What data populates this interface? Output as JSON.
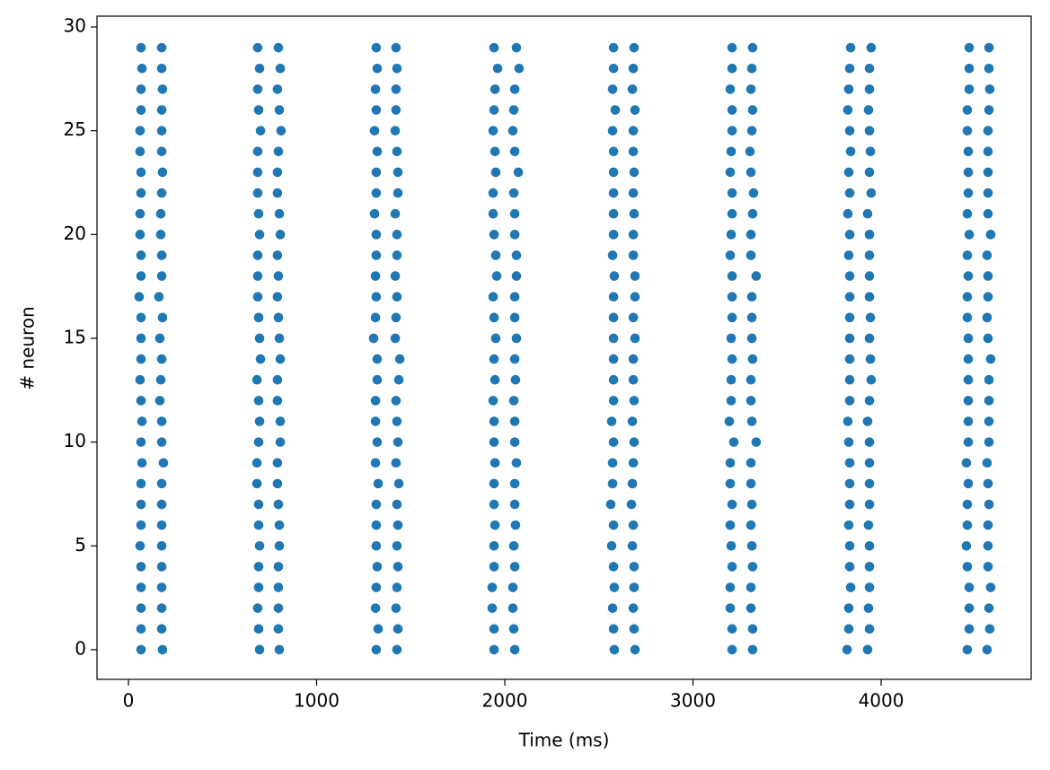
{
  "chart_data": {
    "type": "scatter",
    "xlabel": "Time (ms)",
    "ylabel": "# neuron",
    "color": "#1f77b4",
    "xlim": [
      -167,
      4797
    ],
    "ylim": [
      -1.43,
      30.52
    ],
    "xticks": [
      0,
      1000,
      2000,
      3000,
      4000
    ],
    "yticks": [
      0,
      5,
      10,
      15,
      20,
      25,
      30
    ],
    "x": [
      67,
      177,
      687,
      797,
      1317,
      1422,
      1943,
      2062,
      2578,
      2687,
      3208,
      3317,
      3838,
      3947,
      4468,
      4573,
      72,
      177,
      697,
      807,
      1322,
      1427,
      1962,
      2076,
      2578,
      2683,
      3208,
      3313,
      3833,
      3938,
      4468,
      4573,
      67,
      181,
      687,
      792,
      1313,
      1422,
      1948,
      2053,
      2573,
      2678,
      3198,
      3308,
      3828,
      3938,
      4468,
      4577,
      67,
      177,
      692,
      802,
      1317,
      1422,
      1943,
      2048,
      2587,
      2692,
      3208,
      3317,
      3823,
      3933,
      4458,
      4573,
      62,
      177,
      702,
      811,
      1308,
      1418,
      1938,
      2043,
      2573,
      2683,
      3208,
      3313,
      3833,
      3938,
      4458,
      4568,
      62,
      177,
      687,
      797,
      1322,
      1427,
      1948,
      2053,
      2578,
      2683,
      3203,
      3303,
      3838,
      3943,
      4463,
      4568,
      67,
      181,
      687,
      792,
      1317,
      1432,
      1952,
      2072,
      2578,
      2687,
      3198,
      3308,
      3828,
      3938,
      4463,
      4568,
      67,
      177,
      687,
      792,
      1317,
      1432,
      1938,
      2048,
      2578,
      2683,
      3208,
      3322,
      3833,
      3947,
      4463,
      4568,
      62,
      172,
      692,
      802,
      1308,
      1418,
      1938,
      2053,
      2578,
      2687,
      3208,
      3317,
      3823,
      3928,
      4458,
      4568,
      62,
      172,
      697,
      807,
      1317,
      1427,
      1943,
      2053,
      2578,
      2683,
      3203,
      3308,
      3833,
      3938,
      4468,
      4582,
      67,
      177,
      687,
      792,
      1317,
      1427,
      1952,
      2062,
      2573,
      2683,
      3198,
      3308,
      3828,
      3938,
      4458,
      4563,
      67,
      177,
      687,
      797,
      1313,
      1418,
      1957,
      2062,
      2582,
      2692,
      3208,
      3336,
      3833,
      3938,
      4463,
      4568,
      57,
      162,
      687,
      792,
      1317,
      1427,
      1938,
      2053,
      2578,
      2692,
      3208,
      3313,
      3833,
      3938,
      4458,
      4568,
      67,
      181,
      692,
      797,
      1313,
      1422,
      1943,
      2053,
      2578,
      2683,
      3208,
      3313,
      3833,
      3943,
      4458,
      4563,
      67,
      167,
      697,
      802,
      1303,
      1418,
      1952,
      2062,
      2578,
      2692,
      3203,
      3313,
      3833,
      3938,
      4463,
      4568,
      67,
      177,
      702,
      807,
      1322,
      1442,
      1943,
      2053,
      2578,
      2683,
      3208,
      3317,
      3833,
      3943,
      4463,
      4582,
      62,
      172,
      683,
      792,
      1322,
      1437,
      1948,
      2057,
      2578,
      2683,
      3203,
      3308,
      3833,
      3947,
      4463,
      4573,
      67,
      167,
      692,
      792,
      1313,
      1422,
      1938,
      2048,
      2578,
      2687,
      3203,
      3308,
      3833,
      3938,
      4463,
      4573,
      72,
      177,
      697,
      807,
      1313,
      1427,
      1943,
      2053,
      2568,
      2678,
      3193,
      3313,
      3823,
      3928,
      4463,
      4573,
      67,
      177,
      692,
      807,
      1322,
      1432,
      1943,
      2053,
      2578,
      2687,
      3217,
      3336,
      3828,
      3938,
      4463,
      4573,
      72,
      186,
      683,
      792,
      1313,
      1422,
      1948,
      2062,
      2573,
      2683,
      3198,
      3308,
      3833,
      3938,
      4453,
      4563,
      67,
      177,
      683,
      792,
      1327,
      1437,
      1943,
      2053,
      2573,
      2678,
      3198,
      3308,
      3833,
      3938,
      4463,
      4568,
      67,
      177,
      692,
      797,
      1317,
      1427,
      1943,
      2053,
      2563,
      2673,
      3208,
      3313,
      3833,
      3938,
      4458,
      4573,
      67,
      177,
      692,
      802,
      1317,
      1432,
      1948,
      2057,
      2578,
      2683,
      3198,
      3308,
      3828,
      3933,
      4458,
      4568,
      62,
      177,
      697,
      802,
      1317,
      1427,
      1943,
      2048,
      2568,
      2678,
      3203,
      3313,
      3833,
      3938,
      4453,
      4568,
      67,
      177,
      692,
      797,
      1322,
      1432,
      1943,
      2053,
      2578,
      2687,
      3208,
      3317,
      3833,
      3938,
      4458,
      4568,
      67,
      177,
      692,
      797,
      1317,
      1427,
      1933,
      2043,
      2582,
      2687,
      3198,
      3308,
      3838,
      3938,
      4468,
      4582,
      67,
      177,
      687,
      797,
      1313,
      1422,
      1933,
      2043,
      2573,
      2683,
      3198,
      3308,
      3828,
      3933,
      4468,
      4573,
      67,
      177,
      692,
      797,
      1327,
      1432,
      1943,
      2048,
      2578,
      2687,
      3208,
      3317,
      3828,
      3938,
      4468,
      4577,
      67,
      181,
      697,
      802,
      1317,
      1427,
      1943,
      2053,
      2582,
      2692,
      3208,
      3317,
      3819,
      3928,
      4458,
      4563
    ],
    "y": [
      29,
      29,
      29,
      29,
      29,
      29,
      29,
      29,
      29,
      29,
      29,
      29,
      29,
      29,
      29,
      29,
      28,
      28,
      28,
      28,
      28,
      28,
      28,
      28,
      28,
      28,
      28,
      28,
      28,
      28,
      28,
      28,
      27,
      27,
      27,
      27,
      27,
      27,
      27,
      27,
      27,
      27,
      27,
      27,
      27,
      27,
      27,
      27,
      26,
      26,
      26,
      26,
      26,
      26,
      26,
      26,
      26,
      26,
      26,
      26,
      26,
      26,
      26,
      26,
      25,
      25,
      25,
      25,
      25,
      25,
      25,
      25,
      25,
      25,
      25,
      25,
      25,
      25,
      25,
      25,
      24,
      24,
      24,
      24,
      24,
      24,
      24,
      24,
      24,
      24,
      24,
      24,
      24,
      24,
      24,
      24,
      23,
      23,
      23,
      23,
      23,
      23,
      23,
      23,
      23,
      23,
      23,
      23,
      23,
      23,
      23,
      23,
      22,
      22,
      22,
      22,
      22,
      22,
      22,
      22,
      22,
      22,
      22,
      22,
      22,
      22,
      22,
      22,
      21,
      21,
      21,
      21,
      21,
      21,
      21,
      21,
      21,
      21,
      21,
      21,
      21,
      21,
      21,
      21,
      20,
      20,
      20,
      20,
      20,
      20,
      20,
      20,
      20,
      20,
      20,
      20,
      20,
      20,
      20,
      20,
      19,
      19,
      19,
      19,
      19,
      19,
      19,
      19,
      19,
      19,
      19,
      19,
      19,
      19,
      19,
      19,
      18,
      18,
      18,
      18,
      18,
      18,
      18,
      18,
      18,
      18,
      18,
      18,
      18,
      18,
      18,
      18,
      17,
      17,
      17,
      17,
      17,
      17,
      17,
      17,
      17,
      17,
      17,
      17,
      17,
      17,
      17,
      17,
      16,
      16,
      16,
      16,
      16,
      16,
      16,
      16,
      16,
      16,
      16,
      16,
      16,
      16,
      16,
      16,
      15,
      15,
      15,
      15,
      15,
      15,
      15,
      15,
      15,
      15,
      15,
      15,
      15,
      15,
      15,
      15,
      14,
      14,
      14,
      14,
      14,
      14,
      14,
      14,
      14,
      14,
      14,
      14,
      14,
      14,
      14,
      14,
      13,
      13,
      13,
      13,
      13,
      13,
      13,
      13,
      13,
      13,
      13,
      13,
      13,
      13,
      13,
      13,
      12,
      12,
      12,
      12,
      12,
      12,
      12,
      12,
      12,
      12,
      12,
      12,
      12,
      12,
      12,
      12,
      11,
      11,
      11,
      11,
      11,
      11,
      11,
      11,
      11,
      11,
      11,
      11,
      11,
      11,
      11,
      11,
      10,
      10,
      10,
      10,
      10,
      10,
      10,
      10,
      10,
      10,
      10,
      10,
      10,
      10,
      10,
      10,
      9,
      9,
      9,
      9,
      9,
      9,
      9,
      9,
      9,
      9,
      9,
      9,
      9,
      9,
      9,
      9,
      8,
      8,
      8,
      8,
      8,
      8,
      8,
      8,
      8,
      8,
      8,
      8,
      8,
      8,
      8,
      8,
      7,
      7,
      7,
      7,
      7,
      7,
      7,
      7,
      7,
      7,
      7,
      7,
      7,
      7,
      7,
      7,
      6,
      6,
      6,
      6,
      6,
      6,
      6,
      6,
      6,
      6,
      6,
      6,
      6,
      6,
      6,
      6,
      5,
      5,
      5,
      5,
      5,
      5,
      5,
      5,
      5,
      5,
      5,
      5,
      5,
      5,
      5,
      5,
      4,
      4,
      4,
      4,
      4,
      4,
      4,
      4,
      4,
      4,
      4,
      4,
      4,
      4,
      4,
      4,
      3,
      3,
      3,
      3,
      3,
      3,
      3,
      3,
      3,
      3,
      3,
      3,
      3,
      3,
      3,
      3,
      2,
      2,
      2,
      2,
      2,
      2,
      2,
      2,
      2,
      2,
      2,
      2,
      2,
      2,
      2,
      2,
      1,
      1,
      1,
      1,
      1,
      1,
      1,
      1,
      1,
      1,
      1,
      1,
      1,
      1,
      1,
      1,
      0,
      0,
      0,
      0,
      0,
      0,
      0,
      0,
      0,
      0,
      0,
      0,
      0,
      0,
      0,
      0
    ]
  }
}
